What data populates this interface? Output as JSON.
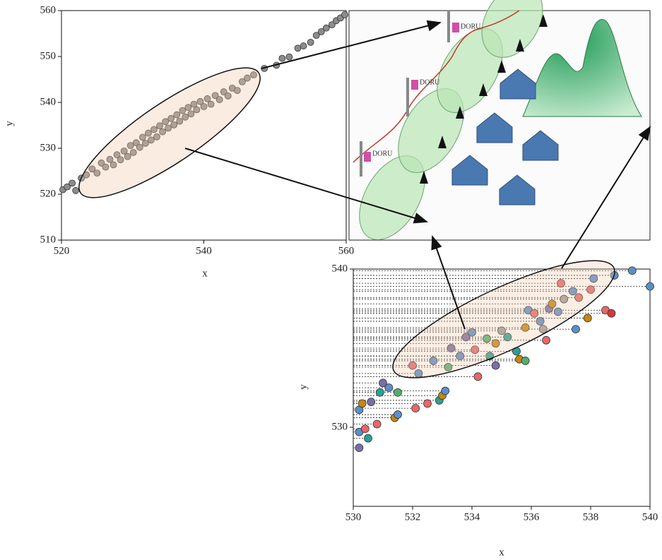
{
  "chart_data": [
    {
      "type": "scatter",
      "x_label": "x",
      "y_label": "y",
      "x": [
        520.2,
        520.8,
        521.5,
        522,
        522.8,
        523.5,
        524.3,
        525,
        525.6,
        526.2,
        526.8,
        527.3,
        527.8,
        528.3,
        528.8,
        529.3,
        529.7,
        530.1,
        530.5,
        531,
        531.4,
        531.8,
        532.2,
        532.6,
        533,
        533.4,
        533.8,
        534.2,
        534.6,
        535,
        535.4,
        535.8,
        536.2,
        536.6,
        537,
        537.4,
        537.8,
        538.2,
        538.6,
        539,
        539.5,
        540,
        540.5,
        541,
        541.6,
        542.2,
        542.8,
        543.4,
        544,
        544.7,
        545.4,
        546.1,
        547,
        548.5,
        550.2,
        551,
        552,
        553.2,
        554,
        555,
        555.8,
        556.5,
        557.2,
        558,
        558.6,
        559.2,
        559.8
      ],
      "values": [
        521,
        521.6,
        522.4,
        520.8,
        523.5,
        524.2,
        525.5,
        524.6,
        526.8,
        525.9,
        527.6,
        526.4,
        528.6,
        527.5,
        529.4,
        528.2,
        530.6,
        529.1,
        531.2,
        530.2,
        532.4,
        531.1,
        533.3,
        531.8,
        534.1,
        532.5,
        534.9,
        533.6,
        535.8,
        534.4,
        536.5,
        535.1,
        537.3,
        535.9,
        538.2,
        536.8,
        538.9,
        537.5,
        539.6,
        538.4,
        540.2,
        539.1,
        540.8,
        539.6,
        541.5,
        540.6,
        542.3,
        541.4,
        543.1,
        542.6,
        544.5,
        545.3,
        546,
        547.4,
        548.1,
        549.6,
        549.9,
        551.8,
        552.3,
        553.1,
        554.6,
        555.4,
        556.2,
        556.9,
        557.8,
        558.4,
        559.1
      ],
      "color": "#8c8c8c",
      "xlim": [
        520,
        560
      ],
      "xticks": [
        520,
        540,
        560
      ],
      "ylim": [
        510,
        560
      ],
      "yticks": [
        510,
        520,
        530,
        540,
        550,
        560
      ]
    },
    {
      "type": "scatter",
      "x_label": "x",
      "y_label": "y",
      "x": [
        530.2,
        530.2,
        530.4,
        530.5,
        530.2,
        530.3,
        530.6,
        530.8,
        530.9,
        531.0,
        531.2,
        531.4,
        531.5,
        531.5,
        532.0,
        532.1,
        532.2,
        532.5,
        532.7,
        532.9,
        533.0,
        533.1,
        533.2,
        533.3,
        533.6,
        533.8,
        534.0,
        534.1,
        534.2,
        534.5,
        534.6,
        534.8,
        534.8,
        535.0,
        535.2,
        535.5,
        535.6,
        535.8,
        535.8,
        535.9,
        536.1,
        536.3,
        536.4,
        536.5,
        536.6,
        536.7,
        536.9,
        537.1,
        537.4,
        537.5,
        537.6,
        537.9,
        538.0,
        538.1,
        538.5,
        538.7,
        538.8,
        539.4,
        540.0,
        537.0
      ],
      "values": [
        528.7,
        529.7,
        529.9,
        529.3,
        531.1,
        531.5,
        531.6,
        530.2,
        532.2,
        532.8,
        532.5,
        530.6,
        532.2,
        530.8,
        533.9,
        531.2,
        533.4,
        531.5,
        534.2,
        531.7,
        532.0,
        532.3,
        533.8,
        535.0,
        534.5,
        535.7,
        536.0,
        534.9,
        533.2,
        535.6,
        534.5,
        535.3,
        533.9,
        536.1,
        535.7,
        534.8,
        534.3,
        534.2,
        536.3,
        537.4,
        537.2,
        536.7,
        536.2,
        535.5,
        537.5,
        537.8,
        537.3,
        538.1,
        538.6,
        536.2,
        538.2,
        536.9,
        538.7,
        539.4,
        537.4,
        537.2,
        539.6,
        539.9,
        538.9,
        539.1
      ],
      "colors": [
        "#7b6fa8",
        "#5b8fc9",
        "#e8676a",
        "#2aa198",
        "#5b8fc9",
        "#c8860f",
        "#7b6fa8",
        "#e8676a",
        "#2aa198",
        "#7b6fa8",
        "#5b8fc9",
        "#c8860f",
        "#4fb06d",
        "#5b8fc9",
        "#e8676a",
        "#e8676a",
        "#5b8fc9",
        "#e8676a",
        "#5b8fc9",
        "#2aa198",
        "#c8860f",
        "#5b8fc9",
        "#4fb06d",
        "#7b6fa8",
        "#5b8fc9",
        "#7b6fa8",
        "#5b8fc9",
        "#e8676a",
        "#e8676a",
        "#4fb06d",
        "#2aa198",
        "#c8860f",
        "#7b6fa8",
        "#9e9e9e",
        "#2aa198",
        "#2aa198",
        "#c8860f",
        "#4fb06d",
        "#c8860f",
        "#5b8fc9",
        "#e8676a",
        "#5b8fc9",
        "#9e9e9e",
        "#e8676a",
        "#7b6fa8",
        "#c8860f",
        "#5b8fc9",
        "#9e9e9e",
        "#5b8fc9",
        "#5b8fc9",
        "#e8676a",
        "#c8860f",
        "#e8676a",
        "#5b8fc9",
        "#e8676a",
        "#d03b3b",
        "#5b8fc9",
        "#5b8fc9",
        "#5b8fc9",
        "#e8676a"
      ],
      "guide_lines": true,
      "xlim": [
        530,
        540
      ],
      "xticks": [
        530,
        532,
        534,
        536,
        538,
        540
      ],
      "ylim": [
        525,
        540
      ],
      "yticks": [
        530,
        540
      ]
    }
  ],
  "illustration": {
    "labels": [
      "DORU",
      "DORU",
      "DORU"
    ]
  }
}
